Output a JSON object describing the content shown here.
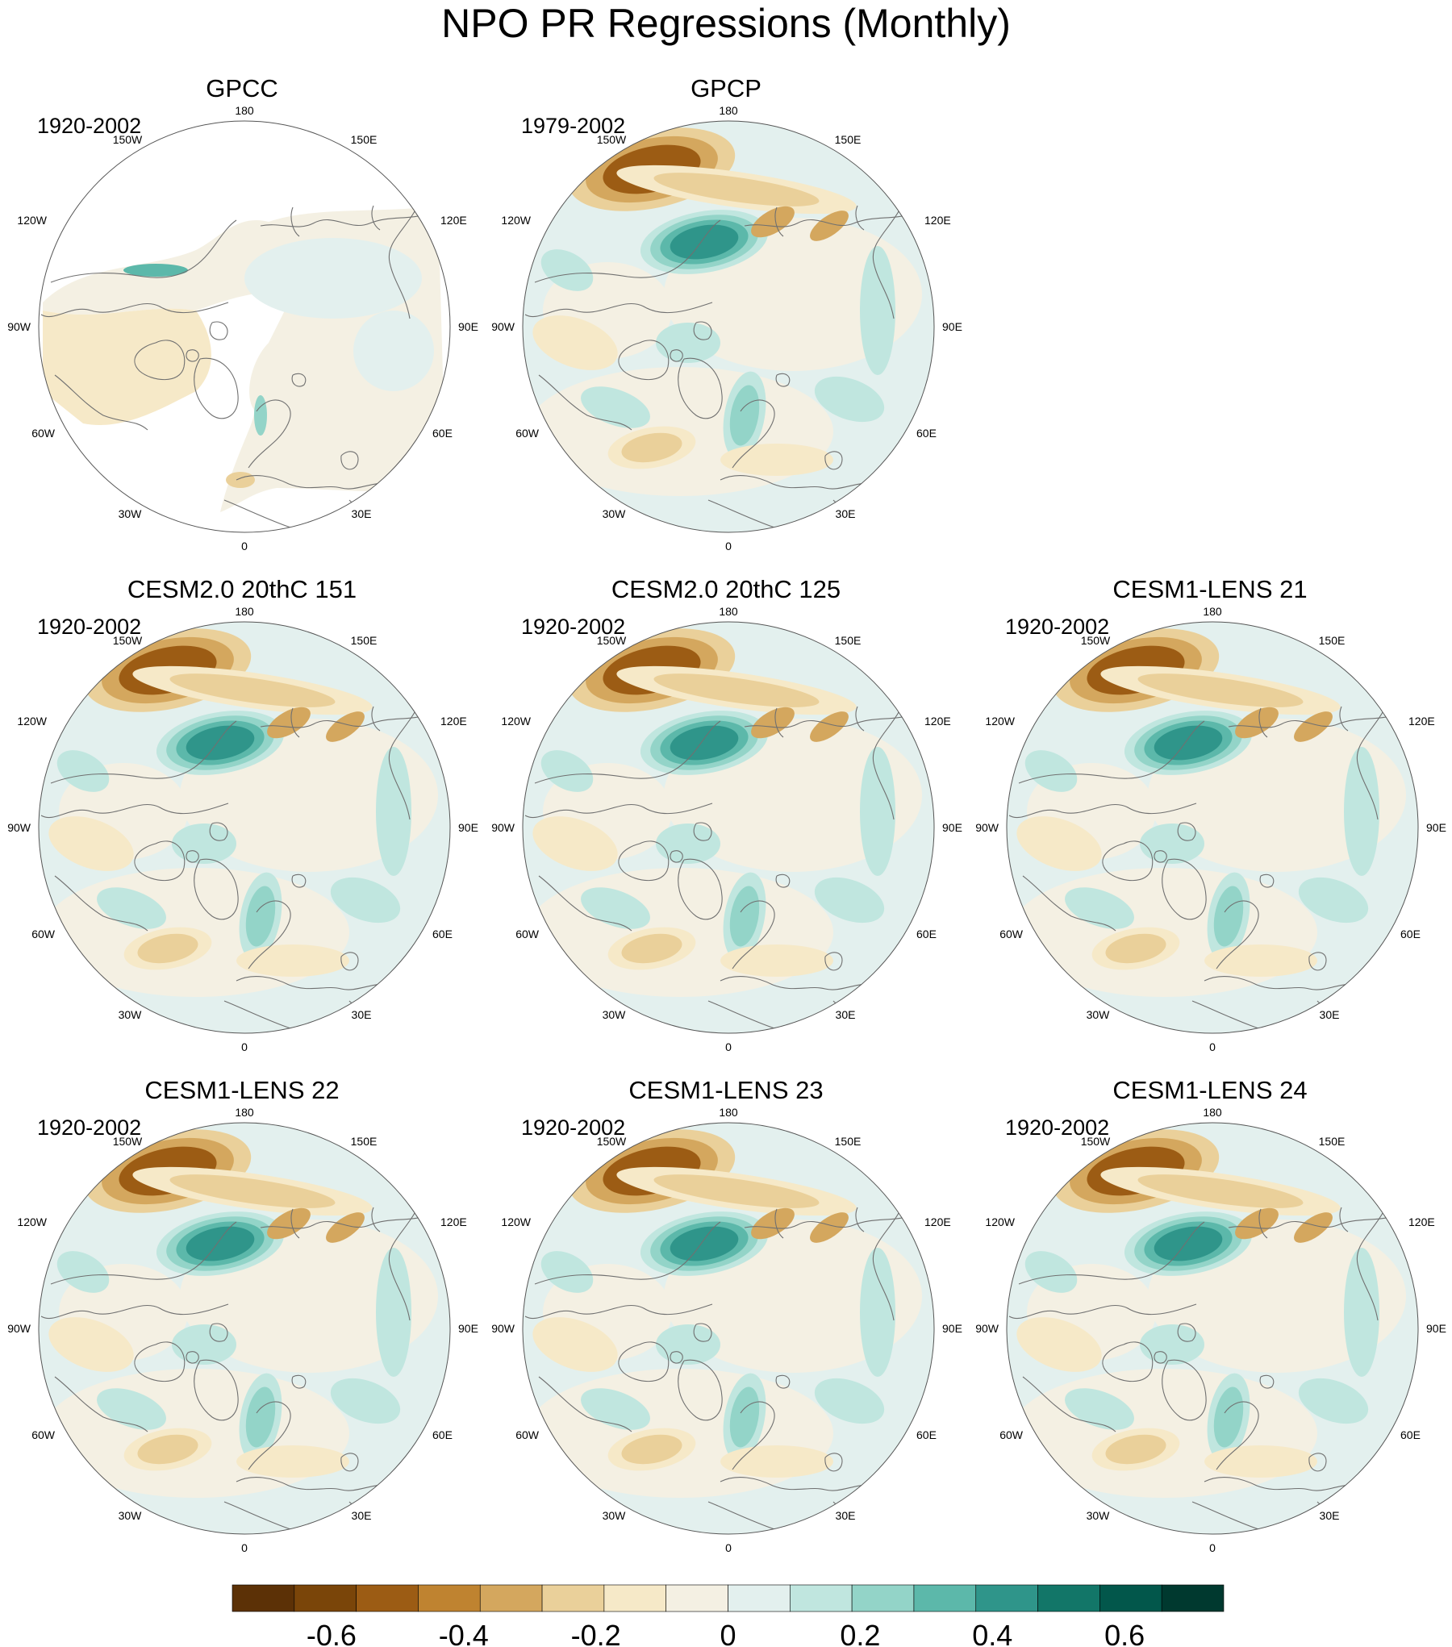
{
  "title": "NPO PR Regressions (Monthly)",
  "longitude_labels": {
    "top": "180",
    "bottom": "0",
    "upper_left": "150W",
    "upper_right": "150E",
    "mid_upper_left": "120W",
    "mid_upper_right": "120E",
    "left": "90W",
    "right": "90E",
    "mid_lower_left": "60W",
    "mid_lower_right": "60E",
    "lower_left": "30W",
    "lower_right": "30E"
  },
  "chart_data": {
    "type": "heatmap",
    "projection": "polar stereographic, Northern Hemisphere",
    "panels": [
      {
        "title": "GPCC",
        "period": "1920-2002",
        "land_only": true
      },
      {
        "title": "GPCP",
        "period": "1979-2002",
        "land_only": false
      },
      {
        "title": "CESM2.0 20thC 151",
        "period": "1920-2002",
        "land_only": false
      },
      {
        "title": "CESM2.0 20thC 125",
        "period": "1920-2002",
        "land_only": false
      },
      {
        "title": "CESM1-LENS 21",
        "period": "1920-2002",
        "land_only": false
      },
      {
        "title": "CESM1-LENS 22",
        "period": "1920-2002",
        "land_only": false
      },
      {
        "title": "CESM1-LENS 23",
        "period": "1920-2002",
        "land_only": false
      },
      {
        "title": "CESM1-LENS 24",
        "period": "1920-2002",
        "land_only": false
      }
    ],
    "colorbar": {
      "levels": [
        -0.7,
        -0.6,
        -0.5,
        -0.4,
        -0.3,
        -0.2,
        -0.1,
        0,
        0.1,
        0.2,
        0.3,
        0.4,
        0.5,
        0.6,
        0.7
      ],
      "colors": [
        "#5c3106",
        "#7a4509",
        "#9c5c14",
        "#bf8330",
        "#d4a75e",
        "#ead09a",
        "#f6e9c8",
        "#f4f0e3",
        "#e3f0ee",
        "#c0e6df",
        "#93d4c8",
        "#5cb8aa",
        "#2f958a",
        "#127668",
        "#02574b",
        "#00392f"
      ],
      "tick_values": [
        -0.6,
        -0.4,
        -0.2,
        0,
        0.2,
        0.4,
        0.6
      ],
      "tick_labels": [
        "-0.6",
        "-0.4",
        "-0.2",
        "0",
        "0.2",
        "0.4",
        "0.6"
      ]
    }
  }
}
